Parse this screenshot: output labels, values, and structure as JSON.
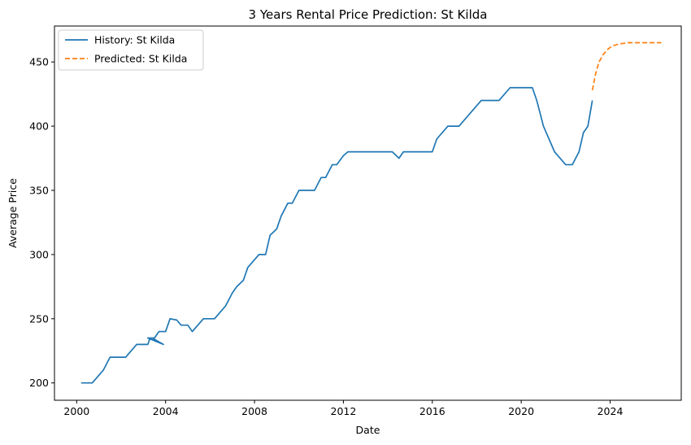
{
  "chart_data": {
    "type": "line",
    "title": "3 Years Rental Price Prediction: St Kilda",
    "xlabel": "Date",
    "ylabel": "Average Price",
    "xlim": [
      1999.0,
      2027.2
    ],
    "ylim": [
      186.5,
      478
    ],
    "x_ticks": [
      2000,
      2004,
      2008,
      2012,
      2016,
      2020,
      2024
    ],
    "y_ticks": [
      200,
      250,
      300,
      350,
      400,
      450
    ],
    "grid": false,
    "legend_position": "top-left",
    "series": [
      {
        "name": "History: St Kilda",
        "color": "#1f77b4",
        "style": "solid",
        "points": [
          [
            2000.2,
            200
          ],
          [
            2000.7,
            200
          ],
          [
            2001.2,
            210
          ],
          [
            2001.5,
            220
          ],
          [
            2001.7,
            220
          ],
          [
            2002.2,
            220
          ],
          [
            2002.7,
            230
          ],
          [
            2003.2,
            230
          ],
          [
            2003.3,
            235
          ],
          [
            2003.4,
            235
          ],
          [
            2003.7,
            232
          ],
          [
            2003.9,
            230
          ],
          [
            2003.2,
            235
          ],
          [
            2003.5,
            235
          ],
          [
            2003.7,
            240
          ],
          [
            2004.0,
            240
          ],
          [
            2004.2,
            250
          ],
          [
            2004.5,
            249
          ],
          [
            2004.7,
            245
          ],
          [
            2005.0,
            245
          ],
          [
            2005.2,
            240
          ],
          [
            2005.7,
            250
          ],
          [
            2006.2,
            250
          ],
          [
            2006.7,
            260
          ],
          [
            2007.0,
            270
          ],
          [
            2007.2,
            275
          ],
          [
            2007.5,
            280
          ],
          [
            2007.7,
            290
          ],
          [
            2008.2,
            300
          ],
          [
            2008.5,
            300
          ],
          [
            2008.7,
            315
          ],
          [
            2009.0,
            320
          ],
          [
            2009.2,
            330
          ],
          [
            2009.5,
            340
          ],
          [
            2009.7,
            340
          ],
          [
            2010.0,
            350
          ],
          [
            2010.2,
            350
          ],
          [
            2010.7,
            350
          ],
          [
            2011.0,
            360
          ],
          [
            2011.2,
            360
          ],
          [
            2011.5,
            370
          ],
          [
            2011.7,
            370
          ],
          [
            2012.0,
            377
          ],
          [
            2012.2,
            380
          ],
          [
            2012.7,
            380
          ],
          [
            2013.2,
            380
          ],
          [
            2013.7,
            380
          ],
          [
            2014.2,
            380
          ],
          [
            2014.5,
            375
          ],
          [
            2014.7,
            380
          ],
          [
            2015.2,
            380
          ],
          [
            2015.7,
            380
          ],
          [
            2016.0,
            380
          ],
          [
            2016.2,
            390
          ],
          [
            2016.7,
            400
          ],
          [
            2017.2,
            400
          ],
          [
            2017.7,
            410
          ],
          [
            2018.2,
            420
          ],
          [
            2018.7,
            420
          ],
          [
            2019.0,
            420
          ],
          [
            2019.5,
            430
          ],
          [
            2020.0,
            430
          ],
          [
            2020.5,
            430
          ],
          [
            2020.7,
            420
          ],
          [
            2021.0,
            400
          ],
          [
            2021.5,
            380
          ],
          [
            2022.0,
            370
          ],
          [
            2022.3,
            370
          ],
          [
            2022.6,
            380
          ],
          [
            2022.8,
            395
          ],
          [
            2023.0,
            400
          ],
          [
            2023.2,
            420
          ]
        ]
      },
      {
        "name": "Predicted: St Kilda",
        "color": "#ff7f0e",
        "style": "dashed",
        "points": [
          [
            2023.2,
            428
          ],
          [
            2023.35,
            441
          ],
          [
            2023.5,
            450
          ],
          [
            2023.7,
            456
          ],
          [
            2023.9,
            460
          ],
          [
            2024.1,
            462.5
          ],
          [
            2024.4,
            464
          ],
          [
            2024.8,
            465
          ],
          [
            2025.2,
            465
          ],
          [
            2025.6,
            465
          ],
          [
            2026.0,
            465
          ],
          [
            2026.3,
            465
          ]
        ]
      }
    ]
  }
}
